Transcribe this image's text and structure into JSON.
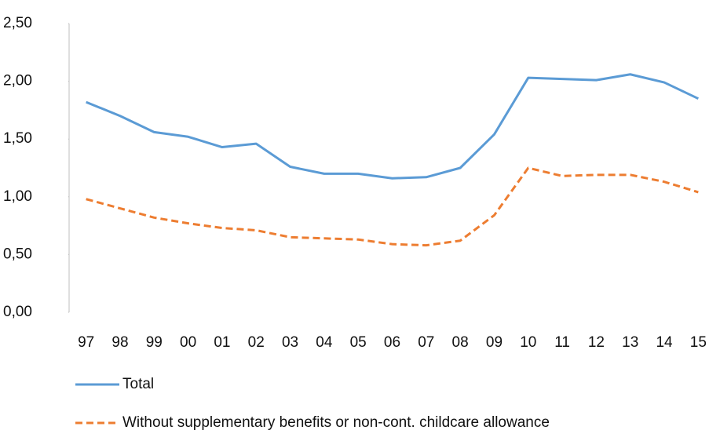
{
  "chart_data": {
    "type": "line",
    "categories": [
      "97",
      "98",
      "99",
      "00",
      "01",
      "02",
      "03",
      "04",
      "05",
      "06",
      "07",
      "08",
      "09",
      "10",
      "11",
      "12",
      "13",
      "14",
      "15"
    ],
    "series": [
      {
        "name": "Total",
        "color": "#5b9bd5",
        "dash": "solid",
        "values": [
          1.82,
          1.7,
          1.56,
          1.52,
          1.43,
          1.46,
          1.26,
          1.2,
          1.2,
          1.16,
          1.17,
          1.25,
          1.54,
          2.03,
          2.02,
          2.01,
          2.06,
          1.99,
          1.85
        ]
      },
      {
        "name": "Without supplementary benefits or non-cont. childcare allowance",
        "color": "#ed7d31",
        "dash": "dashed",
        "values": [
          0.98,
          0.9,
          0.82,
          0.77,
          0.73,
          0.71,
          0.65,
          0.64,
          0.63,
          0.59,
          0.58,
          0.62,
          0.84,
          1.25,
          1.18,
          1.19,
          1.19,
          1.13,
          1.04
        ]
      }
    ],
    "ylim": [
      0,
      2.5
    ],
    "yticks": [
      {
        "value": 0,
        "label": "0,00"
      },
      {
        "value": 0.5,
        "label": "0,50"
      },
      {
        "value": 1,
        "label": "1,00"
      },
      {
        "value": 1.5,
        "label": "1,50"
      },
      {
        "value": 2,
        "label": "2,00"
      },
      {
        "value": 2.5,
        "label": "2,50"
      }
    ],
    "grid": false,
    "legend": "bottom"
  }
}
